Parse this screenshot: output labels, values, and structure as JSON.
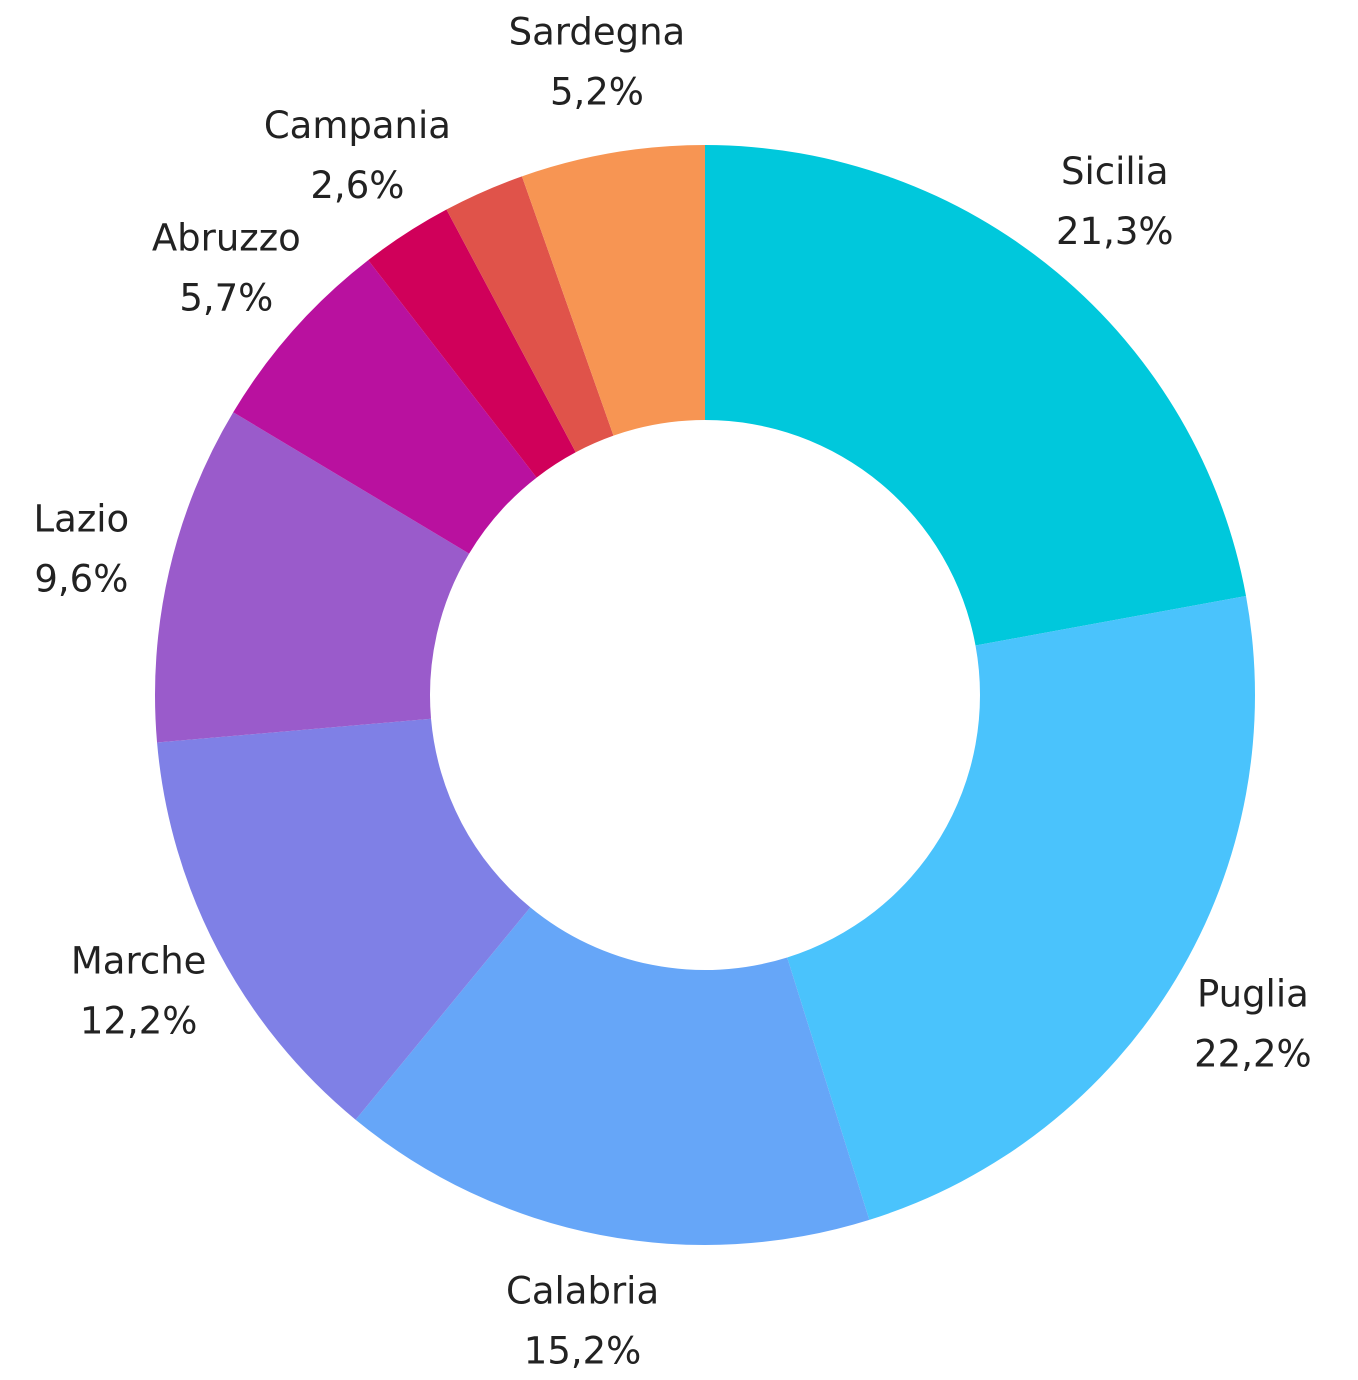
{
  "chart_data": {
    "type": "pie",
    "categories": [
      "Sicilia",
      "Puglia",
      "Calabria",
      "Marche",
      "Lazio",
      "Abruzzo",
      "Campania",
      null,
      "Sardegna"
    ],
    "values": [
      21.3,
      22.2,
      15.2,
      12.2,
      9.6,
      5.7,
      2.6,
      2.3,
      5.2
    ],
    "value_labels": [
      "21,3%",
      "22,2%",
      "15,2%",
      "12,2%",
      "9,6%",
      "5,7%",
      "2,6%",
      null,
      "5,2%"
    ],
    "colors": [
      "#00c8dc",
      "#4ac3fc",
      "#66a6f8",
      "#7f80e6",
      "#9a5bcb",
      "#b9119f",
      "#d0005a",
      "#e0534a",
      "#f79553"
    ],
    "donut": true
  }
}
